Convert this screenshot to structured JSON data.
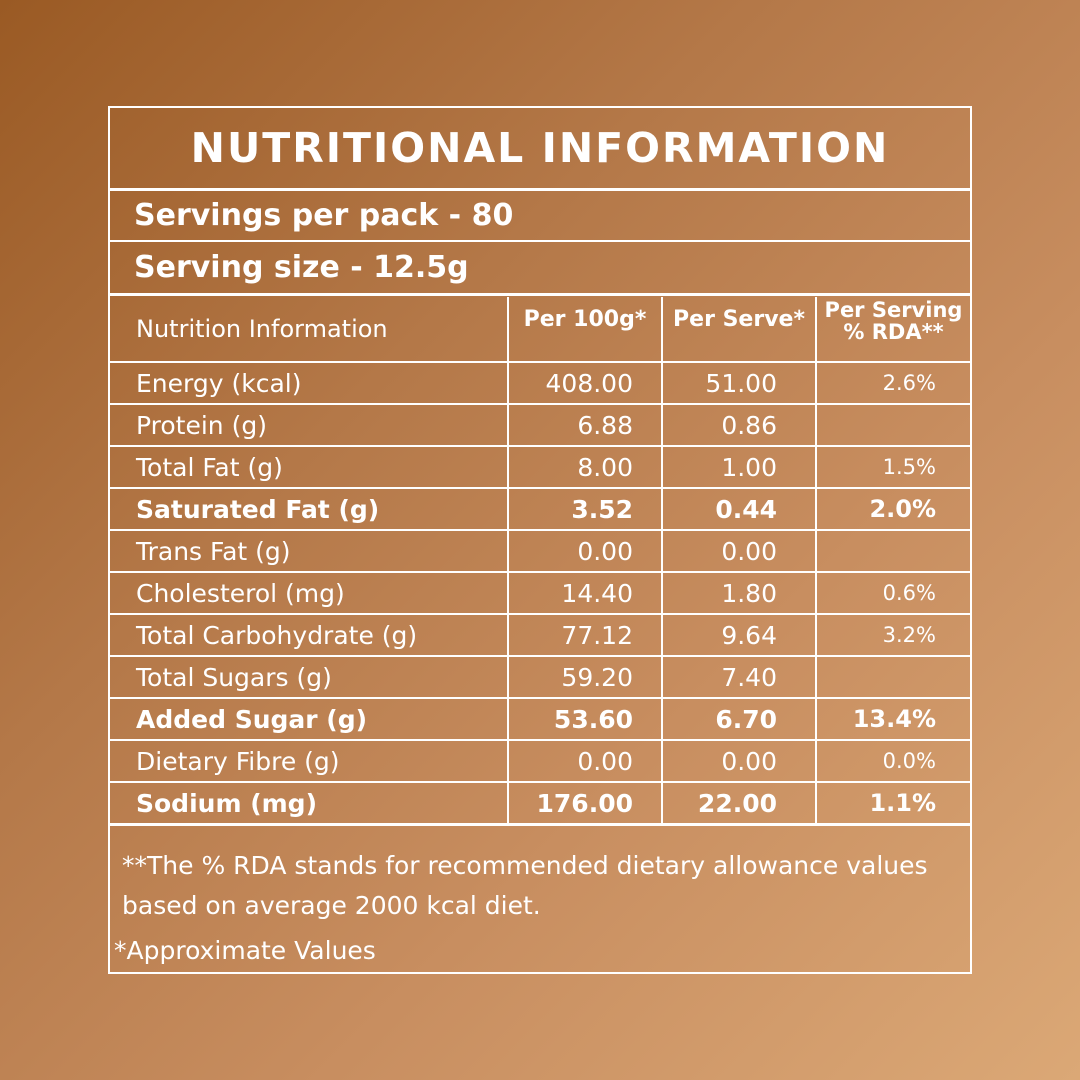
{
  "title": "NUTRITIONAL INFORMATION",
  "servings_per_pack": "Servings per pack - 80",
  "serving_size": "Serving size - 12.5g",
  "table": {
    "headers": [
      "Nutrition Information",
      "Per 100g*",
      "Per Serve*",
      "Per Serving",
      "% RDA**"
    ],
    "rows": [
      {
        "name": "Energy (kcal)",
        "per100": "408.00",
        "serve": "51.00",
        "rda": "2.6%",
        "bold": false
      },
      {
        "name": "Protein (g)",
        "per100": "6.88",
        "serve": "0.86",
        "rda": "",
        "bold": false
      },
      {
        "name": "Total Fat (g)",
        "per100": "8.00",
        "serve": "1.00",
        "rda": "1.5%",
        "bold": false
      },
      {
        "name": "Saturated Fat (g)",
        "per100": "3.52",
        "serve": "0.44",
        "rda": "2.0%",
        "bold": true
      },
      {
        "name": "Trans Fat (g)",
        "per100": "0.00",
        "serve": "0.00",
        "rda": "",
        "bold": false
      },
      {
        "name": "Cholesterol (mg)",
        "per100": "14.40",
        "serve": "1.80",
        "rda": "0.6%",
        "bold": false
      },
      {
        "name": "Total Carbohydrate (g)",
        "per100": "77.12",
        "serve": "9.64",
        "rda": "3.2%",
        "bold": false
      },
      {
        "name": "Total Sugars (g)",
        "per100": "59.20",
        "serve": "7.40",
        "rda": "",
        "bold": false
      },
      {
        "name": "Added  Sugar (g)",
        "per100": "53.60",
        "serve": "6.70",
        "rda": "13.4%",
        "bold": true
      },
      {
        "name": "Dietary Fibre (g)",
        "per100": "0.00",
        "serve": "0.00",
        "rda": "0.0%",
        "bold": false
      },
      {
        "name": "Sodium (mg)",
        "per100": "176.00",
        "serve": "22.00",
        "rda": "1.1%",
        "bold": true
      }
    ]
  },
  "footnote_rda": "**The % RDA stands for recommended dietary allowance values based on average 2000 kcal diet.",
  "footnote_approx": "*Approximate Values"
}
